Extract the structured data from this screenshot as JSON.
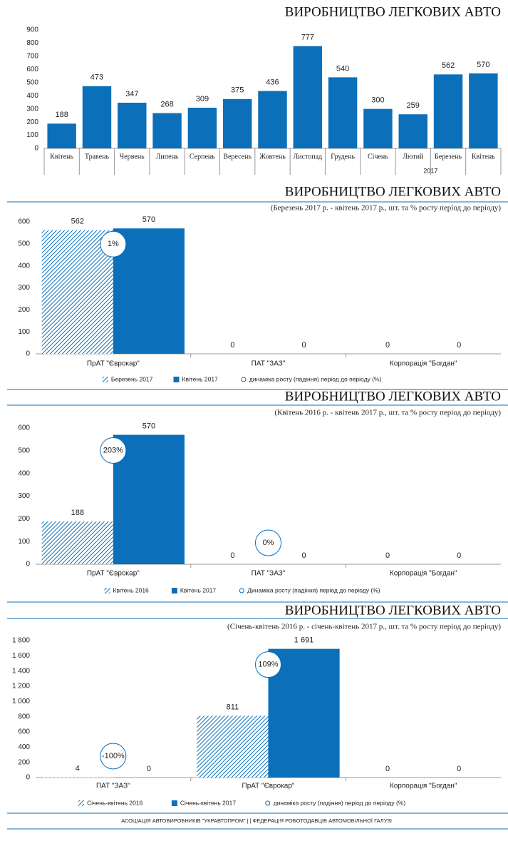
{
  "chart_data": [
    {
      "type": "bar",
      "title": "ВИРОБНИЦТВО ЛЕГКОВИХ АВТО",
      "categories": [
        "Квітень",
        "Травень",
        "Червень",
        "Липень",
        "Серпень",
        "Вересень",
        "Жовтень",
        "Листопад",
        "Грудень",
        "Січень",
        "Лютий",
        "Березень",
        "Квітень"
      ],
      "groups": [
        {
          "label": "2017",
          "start": 9,
          "end": 12
        }
      ],
      "values": [
        188,
        473,
        347,
        268,
        309,
        375,
        436,
        777,
        540,
        300,
        259,
        562,
        570
      ],
      "color": "#0b6fba",
      "ylim": [
        0,
        900
      ],
      "yticks": [
        0,
        100,
        200,
        300,
        400,
        500,
        600,
        700,
        800,
        900
      ]
    },
    {
      "type": "grouped-bar",
      "title": "ВИРОБНИЦТВО ЛЕГКОВИХ АВТО",
      "subtitle": "(Березень 2017 р. - квітень 2017 р., шт. та % росту період до періоду)",
      "categories": [
        "ПрАТ \"Єврокар\"",
        "ПАТ \"ЗАЗ\"",
        "Корпорація \"Богдан\""
      ],
      "series": [
        {
          "name": "Березень 2017",
          "color": "#0b6fba",
          "pattern": "hatch",
          "values": [
            562,
            0,
            0
          ]
        },
        {
          "name": "Квітень 2017",
          "color": "#0b6fba",
          "values": [
            570,
            0,
            0
          ]
        },
        {
          "name": "динаміка росту (падіння) період до періоду (%)",
          "color": "#0b6fba",
          "marker": "circle",
          "values": [
            1,
            null,
            null
          ],
          "value_labels": [
            "1%",
            null,
            null
          ]
        }
      ],
      "ylim": [
        0,
        600
      ],
      "yticks": [
        0,
        100,
        200,
        300,
        400,
        500,
        600
      ]
    },
    {
      "type": "grouped-bar",
      "title": "ВИРОБНИЦТВО ЛЕГКОВИХ АВТО",
      "subtitle": "(Квітень 2016 р. - квітень 2017 р., шт. та % росту період до періоду)",
      "categories": [
        "ПрАТ \"Єврокар\"",
        "ПАТ \"ЗАЗ\"",
        "Корпорація \"Богдан\""
      ],
      "series": [
        {
          "name": "Квітень 2016",
          "color": "#0b6fba",
          "pattern": "hatch",
          "values": [
            188,
            0,
            0
          ]
        },
        {
          "name": "Квітень 2017",
          "color": "#0b6fba",
          "values": [
            570,
            0,
            0
          ]
        },
        {
          "name": "Динаміка росту (падіння) період до періоду (%)",
          "color": "#0b6fba",
          "marker": "circle",
          "values": [
            203,
            0,
            null
          ],
          "value_labels": [
            "203%",
            "0%",
            null
          ]
        }
      ],
      "ylim": [
        0,
        600
      ],
      "yticks": [
        0,
        100,
        200,
        300,
        400,
        500,
        600
      ]
    },
    {
      "type": "grouped-bar",
      "title": "ВИРОБНИЦТВО ЛЕГКОВИХ АВТО",
      "subtitle": "(Січень-квітень 2016 р. - січень-квітень 2017 р., шт. та % росту період до періоду)",
      "categories": [
        "ПАТ \"ЗАЗ\"",
        "ПрАТ \"Єврокар\"",
        "Корпорація \"Богдан\""
      ],
      "series": [
        {
          "name": "Січень-квітень 2016",
          "color": "#0b6fba",
          "pattern": "hatch",
          "values": [
            4,
            811,
            0
          ]
        },
        {
          "name": "Січень-квітень 2017",
          "color": "#0b6fba",
          "values": [
            0,
            1691,
            0
          ],
          "value_labels": [
            "0",
            "1 691",
            "0"
          ]
        },
        {
          "name": "динаміка росту (падіння) період до періоду (%)",
          "color": "#0b6fba",
          "marker": "circle",
          "values": [
            -100,
            109,
            null
          ],
          "value_labels": [
            "-100%",
            "109%",
            null
          ]
        }
      ],
      "ylim": [
        0,
        1800
      ],
      "yticks": [
        0,
        200,
        400,
        600,
        800,
        {
          "value": 1000,
          "label": "1 000"
        },
        {
          "value": 1200,
          "label": "1 200"
        },
        {
          "value": 1400,
          "label": "1 400"
        },
        {
          "value": 1600,
          "label": "1 600"
        },
        {
          "value": 1800,
          "label": "1 800"
        }
      ]
    }
  ],
  "footer": "АСОЦІАЦІЯ АВТОВИРОБНИКІВ \"УКРАВТОПРОМ\" | | ФЕДЕРАЦІЯ РОБОТОДАВЦІВ АВТОМОБІЛЬНОЇ ГАЛУЗІ"
}
